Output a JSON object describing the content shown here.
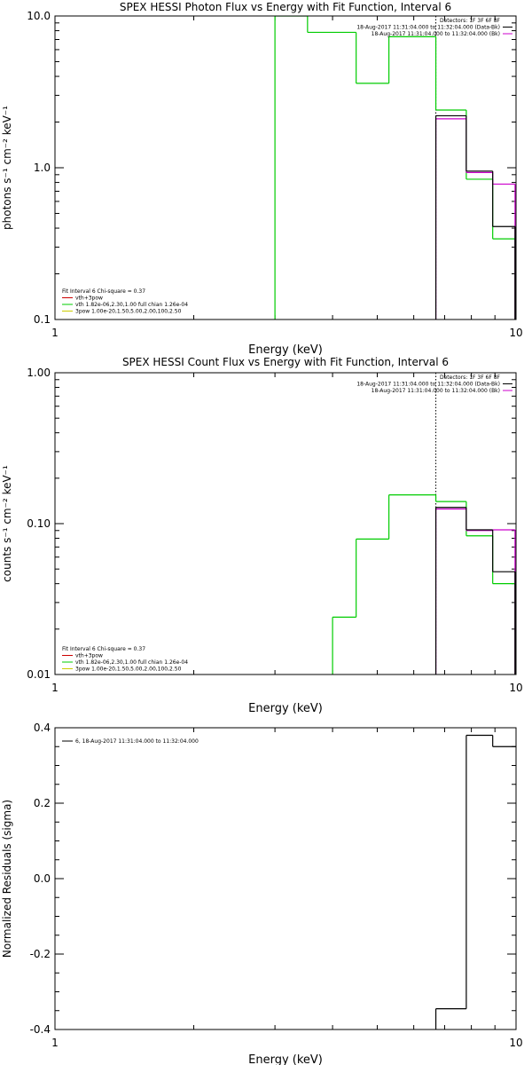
{
  "chart_data": [
    {
      "type": "line",
      "title": "SPEX HESSI Photon Flux vs Energy with Fit Function, Interval 6",
      "xlabel": "Energy (keV)",
      "ylabel": "photons s⁻¹ cm⁻² keV⁻¹",
      "xlim": [
        1,
        10
      ],
      "ylim": [
        0.1,
        10
      ],
      "xscale": "log",
      "yscale": "log",
      "xticks": [
        {
          "v": 1,
          "label": "1"
        },
        {
          "v": 10,
          "label": "10"
        }
      ],
      "yticks": [
        {
          "v": 0.1,
          "label": "0.1"
        },
        {
          "v": 1,
          "label": "1.0"
        },
        {
          "v": 10,
          "label": "10.0"
        }
      ],
      "vline": 6.7,
      "legend_top_right": {
        "lines": [
          {
            "text": "Detectors: 1F 3F 6F 8F",
            "color": ""
          },
          {
            "text": "18-Aug-2017 11:31:04.000 to 11:32:04.000 (Data-Bk)",
            "color": "#000000"
          },
          {
            "text": "18-Aug-2017 11:31:04.000 to 11:32:04.000 (Bk)",
            "color": "#cc00cc"
          }
        ]
      },
      "legend_bottom_left": {
        "lines": [
          {
            "text": "Fit Interval 6   Chi-square = 0.37",
            "color": ""
          },
          {
            "text": "vth+3pow",
            "color": "#cc0000"
          },
          {
            "text": "vth 1.82e-06,2.30,1.00  full chian 1.26e-04",
            "color": "#00cc00"
          },
          {
            "text": "3pow 1.00e-20,1.50,5.00,2.00,100,2.50",
            "color": "#cccc00"
          }
        ]
      },
      "series": [
        {
          "role": "fit",
          "color": "#00cc00",
          "bins": [
            {
              "x0": 3.0,
              "x1": 3.53,
              "y": 10
            },
            {
              "x0": 3.53,
              "x1": 4.5,
              "y": 7.8
            },
            {
              "x0": 4.5,
              "x1": 5.3,
              "y": 3.6
            },
            {
              "x0": 5.3,
              "x1": 6.7,
              "y": 7.3
            },
            {
              "x0": 6.7,
              "x1": 7.8,
              "y": 2.4
            },
            {
              "x0": 7.8,
              "x1": 8.9,
              "y": 0.84
            },
            {
              "x0": 8.9,
              "x1": 9.95,
              "y": 0.34
            }
          ]
        },
        {
          "role": "data-bk",
          "color": "#000000",
          "bins": [
            {
              "x0": 6.7,
              "x1": 7.8,
              "y": 2.2
            },
            {
              "x0": 7.8,
              "x1": 8.9,
              "y": 0.95
            },
            {
              "x0": 8.9,
              "x1": 9.95,
              "y": 0.41
            }
          ]
        },
        {
          "role": "bk",
          "color": "#cc00cc",
          "bins": [
            {
              "x0": 6.7,
              "x1": 7.8,
              "y": 2.1
            },
            {
              "x0": 7.8,
              "x1": 8.9,
              "y": 0.93
            },
            {
              "x0": 8.9,
              "x1": 9.95,
              "y": 0.78
            }
          ]
        }
      ]
    },
    {
      "type": "line",
      "title": "SPEX HESSI Count Flux vs Energy with Fit Function, Interval 6",
      "xlabel": "Energy (keV)",
      "ylabel": "counts s⁻¹ cm⁻² keV⁻¹",
      "xlim": [
        1,
        10
      ],
      "ylim": [
        0.01,
        1
      ],
      "xscale": "log",
      "yscale": "log",
      "xticks": [
        {
          "v": 1,
          "label": "1"
        },
        {
          "v": 10,
          "label": "10"
        }
      ],
      "yticks": [
        {
          "v": 0.01,
          "label": "0.01"
        },
        {
          "v": 0.1,
          "label": "0.10"
        },
        {
          "v": 1,
          "label": "1.00"
        }
      ],
      "vline": 6.7,
      "legend_top_right": {
        "lines": [
          {
            "text": "Detectors: 1F 3F 6F 8F",
            "color": ""
          },
          {
            "text": "18-Aug-2017 11:31:04.000 to 11:32:04.000 (Data-Bk)",
            "color": "#000000"
          },
          {
            "text": "18-Aug-2017 11:31:04.000 to 11:32:04.000 (Bk)",
            "color": "#cc00cc"
          }
        ]
      },
      "legend_bottom_left": {
        "lines": [
          {
            "text": "Fit Interval 6   Chi-square = 0.37",
            "color": ""
          },
          {
            "text": "vth+3pow",
            "color": "#cc0000"
          },
          {
            "text": "vth 1.82e-06,2.30,1.00  full chian 1.26e-04",
            "color": "#00cc00"
          },
          {
            "text": "3pow 1.00e-20,1.50,5.00,2.00,100,2.50",
            "color": "#cccc00"
          }
        ]
      },
      "series": [
        {
          "role": "fit",
          "color": "#00cc00",
          "bins": [
            {
              "x0": 4.0,
              "x1": 4.5,
              "y": 0.024
            },
            {
              "x0": 4.5,
              "x1": 5.3,
              "y": 0.079
            },
            {
              "x0": 5.3,
              "x1": 6.7,
              "y": 0.155
            },
            {
              "x0": 6.7,
              "x1": 7.8,
              "y": 0.14
            },
            {
              "x0": 7.8,
              "x1": 8.9,
              "y": 0.083
            },
            {
              "x0": 8.9,
              "x1": 9.95,
              "y": 0.04
            }
          ]
        },
        {
          "role": "data-bk",
          "color": "#000000",
          "bins": [
            {
              "x0": 6.7,
              "x1": 7.8,
              "y": 0.128
            },
            {
              "x0": 7.8,
              "x1": 8.9,
              "y": 0.091
            },
            {
              "x0": 8.9,
              "x1": 9.95,
              "y": 0.048
            }
          ]
        },
        {
          "role": "bk",
          "color": "#cc00cc",
          "bins": [
            {
              "x0": 6.7,
              "x1": 7.8,
              "y": 0.125
            },
            {
              "x0": 7.8,
              "x1": 8.9,
              "y": 0.09
            },
            {
              "x0": 8.9,
              "x1": 9.95,
              "y": 0.091
            }
          ]
        }
      ]
    },
    {
      "type": "line",
      "title": "",
      "xlabel": "Energy (keV)",
      "ylabel": "Normalized Residuals (sigma)",
      "xlim": [
        1,
        10
      ],
      "ylim": [
        -0.4,
        0.4
      ],
      "xscale": "log",
      "yscale": "linear",
      "xticks": [
        {
          "v": 1,
          "label": "1"
        },
        {
          "v": 10,
          "label": "10"
        }
      ],
      "yticks": [
        {
          "v": -0.4,
          "label": "-0.4"
        },
        {
          "v": -0.2,
          "label": "-0.2"
        },
        {
          "v": 0,
          "label": "0.0"
        },
        {
          "v": 0.2,
          "label": "0.2"
        },
        {
          "v": 0.4,
          "label": "0.4"
        }
      ],
      "legend_top_left": {
        "lines": [
          {
            "text": "6, 18-Aug-2017 11:31:04.000 to 11:32:04.000",
            "color": "#000000"
          }
        ]
      },
      "series": [
        {
          "role": "residuals",
          "color": "#000000",
          "bins": [
            {
              "x0": 6.7,
              "x1": 7.8,
              "y": -0.345
            },
            {
              "x0": 7.8,
              "x1": 8.9,
              "y": 0.38
            },
            {
              "x0": 8.9,
              "x1": 10.0,
              "y": 0.35
            }
          ]
        }
      ]
    }
  ]
}
